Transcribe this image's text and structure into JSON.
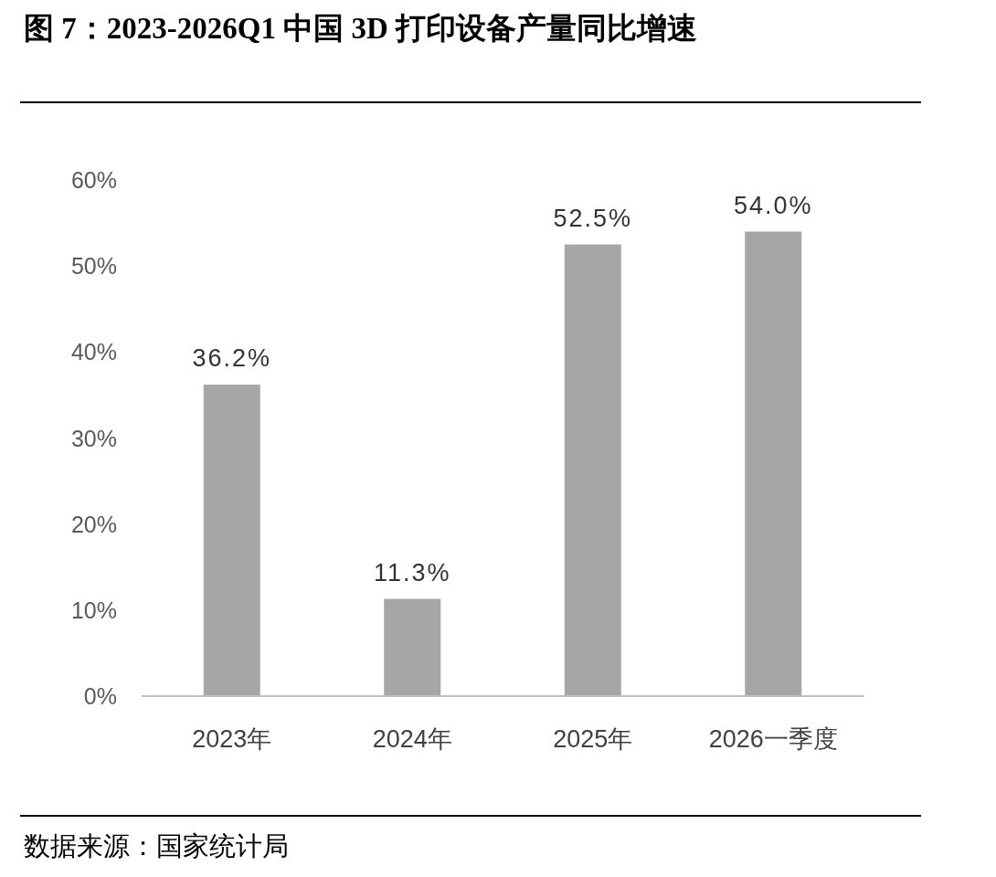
{
  "chart_data": {
    "type": "bar",
    "title": "图 7：2023-2026Q1 中国 3D 打印设备产量同比增速",
    "categories": [
      "2023年",
      "2024年",
      "2025年",
      "2026一季度"
    ],
    "values": [
      36.2,
      11.3,
      52.5,
      54.0
    ],
    "value_labels": [
      "36.2%",
      "11.3%",
      "52.5%",
      "54.0%"
    ],
    "color": "#a6a6a6",
    "ylim": [
      0,
      60
    ],
    "yticks": [
      {
        "value": 0,
        "label": "0%"
      },
      {
        "value": 10,
        "label": "10%"
      },
      {
        "value": 20,
        "label": "20%"
      },
      {
        "value": 30,
        "label": "30%"
      },
      {
        "value": 40,
        "label": "40%"
      },
      {
        "value": 50,
        "label": "50%"
      },
      {
        "value": 60,
        "label": "60%"
      }
    ],
    "grid": false,
    "annotations": [
      "数据来源：国家统计局"
    ]
  }
}
